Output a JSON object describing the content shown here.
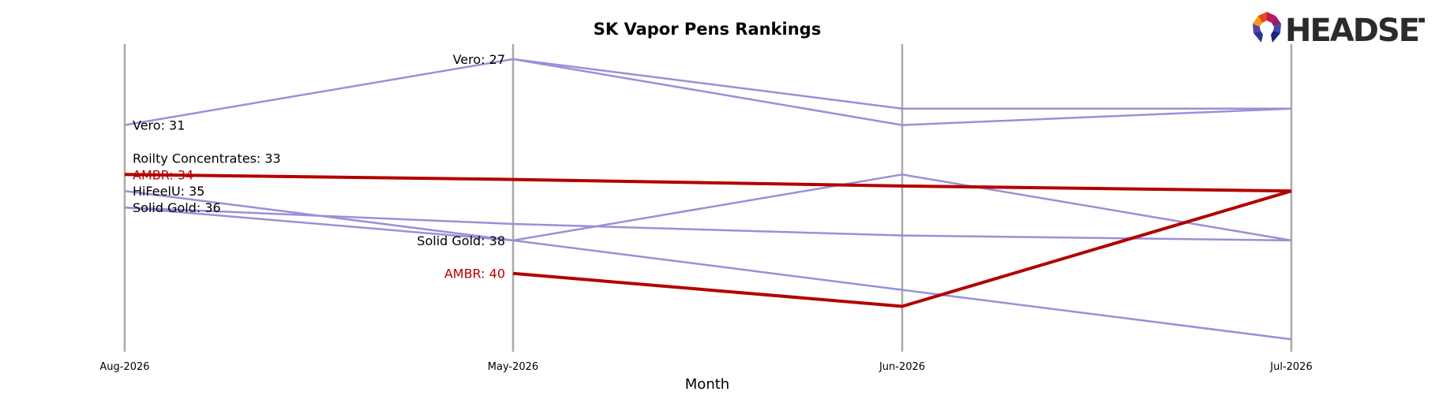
{
  "chart_data": {
    "type": "line",
    "title": "SK Vapor Pens Rankings",
    "xlabel": "Month",
    "ylabel": "",
    "categories": [
      "Aug-2026",
      "May-2026",
      "Jun-2026",
      "Jul-2026"
    ],
    "y_inverted": true,
    "ylim": [
      26,
      45
    ],
    "grid": false,
    "highlight_color": "#b30000",
    "default_color": "#9b8fd8",
    "axis_color": "#a9a9a9",
    "series": [
      {
        "name": "Vero",
        "values": [
          31,
          27,
          31,
          30
        ],
        "highlight": false
      },
      {
        "name": "Roilty Concentrates",
        "values": [
          33,
          null,
          null,
          null
        ],
        "highlight": false
      },
      {
        "name": "AMBR",
        "values": [
          34,
          null,
          null,
          null
        ],
        "highlight": true
      },
      {
        "name": "HiFeelU",
        "values": [
          35,
          null,
          null,
          null
        ],
        "highlight": false
      },
      {
        "name": "Solid Gold",
        "values": [
          36,
          38,
          34,
          38
        ],
        "highlight": false
      },
      {
        "name": "",
        "values": [
          null,
          27,
          30,
          30
        ],
        "highlight": false
      },
      {
        "name": "",
        "values": [
          34,
          34.3,
          34.7,
          35
        ],
        "highlight": true
      },
      {
        "name": "",
        "values": [
          35,
          38,
          41,
          44
        ],
        "highlight": false
      },
      {
        "name": "",
        "values": [
          36,
          37,
          37.7,
          38
        ],
        "highlight": false
      },
      {
        "name": "",
        "values": [
          null,
          40,
          42,
          35
        ],
        "highlight": true
      }
    ],
    "annotations": [
      {
        "text": "Vero: 31",
        "category": 0,
        "value": 31,
        "side": "right",
        "highlight": false
      },
      {
        "text": "Roilty Concentrates: 33",
        "category": 0,
        "value": 33,
        "side": "right",
        "highlight": false
      },
      {
        "text": "AMBR: 34",
        "category": 0,
        "value": 34,
        "side": "right",
        "highlight": true
      },
      {
        "text": "HiFeelU: 35",
        "category": 0,
        "value": 35,
        "side": "right",
        "highlight": false
      },
      {
        "text": "Solid Gold: 36",
        "category": 0,
        "value": 36,
        "side": "right",
        "highlight": false
      },
      {
        "text": "Vero: 27",
        "category": 1,
        "value": 27,
        "side": "left",
        "highlight": false
      },
      {
        "text": "Solid Gold: 38",
        "category": 1,
        "value": 38,
        "side": "left",
        "highlight": false
      },
      {
        "text": "AMBR: 40",
        "category": 1,
        "value": 40,
        "side": "left",
        "highlight": true
      }
    ]
  },
  "logo": {
    "text": "HEADSET"
  }
}
